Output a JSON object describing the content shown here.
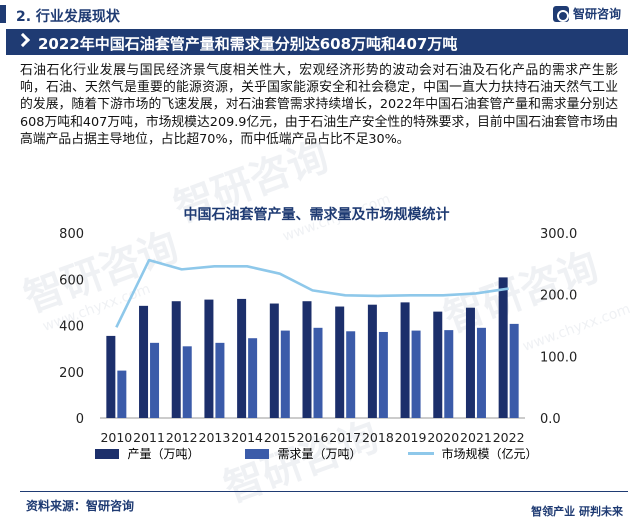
{
  "header": {
    "section_title": "2. 行业发展现状",
    "logo_text": "智研咨询",
    "headline": "2022年中国石油套管产量和需求量分别达608万吨和407万吨"
  },
  "body_text": "石油石化行业发展与国民经济景气度相关性大，宏观经济形势的波动会对石油及石化产品的需求产生影响，石油、天然气是重要的能源资源，关乎国家能源安全和社会稳定，中国一直大力扶持石油天然气工业的发展，随着下游市场的飞速发展，对石油套管需求持续增长，2022年中国石油套管产量和需求量分别达608万吨和407万吨，市场规模达209.9亿元，由于石油生产安全性的特殊要求，目前中国石油套管市场由高端产品占据主导地位，占比超70%，而中低端产品占比不足30%。",
  "watermark": {
    "text": "智研咨询",
    "url": "www.chyxx.com"
  },
  "footer": {
    "source": "资料来源：智研咨询",
    "slogan": "智领产业  研判未来"
  },
  "colors": {
    "production": "#1c2f6b",
    "demand": "#3b5ba9",
    "market": "#8ec8ea",
    "brand": "#1f3b73"
  },
  "chart_data": {
    "type": "bar",
    "title": "中国石油套管产量、需求量及市场规模统计",
    "categories": [
      "2010",
      "2011",
      "2012",
      "2013",
      "2014",
      "2015",
      "2016",
      "2017",
      "2018",
      "2019",
      "2020",
      "2021",
      "2022"
    ],
    "y_left_ticks": [
      "0",
      "200",
      "400",
      "600",
      "800"
    ],
    "y_right_ticks": [
      "0.0",
      "100.0",
      "200.0",
      "300.0"
    ],
    "ylim_left": [
      0,
      800
    ],
    "ylim_right": [
      0,
      300
    ],
    "grid": false,
    "legend_position": "bottom",
    "series": [
      {
        "name": "产量（万吨）",
        "type": "bar",
        "axis": "left",
        "values": [
          355,
          485,
          505,
          512,
          515,
          495,
          505,
          482,
          490,
          500,
          460,
          477,
          608
        ]
      },
      {
        "name": "需求量（万吨）",
        "type": "bar",
        "axis": "left",
        "values": [
          205,
          325,
          310,
          325,
          345,
          378,
          390,
          375,
          372,
          378,
          380,
          390,
          407
        ]
      },
      {
        "name": "市场规模（亿元）",
        "type": "line",
        "axis": "right",
        "values": [
          147,
          256,
          241,
          246,
          246,
          234,
          207,
          199,
          198,
          199,
          199,
          202,
          209.9
        ]
      }
    ]
  }
}
